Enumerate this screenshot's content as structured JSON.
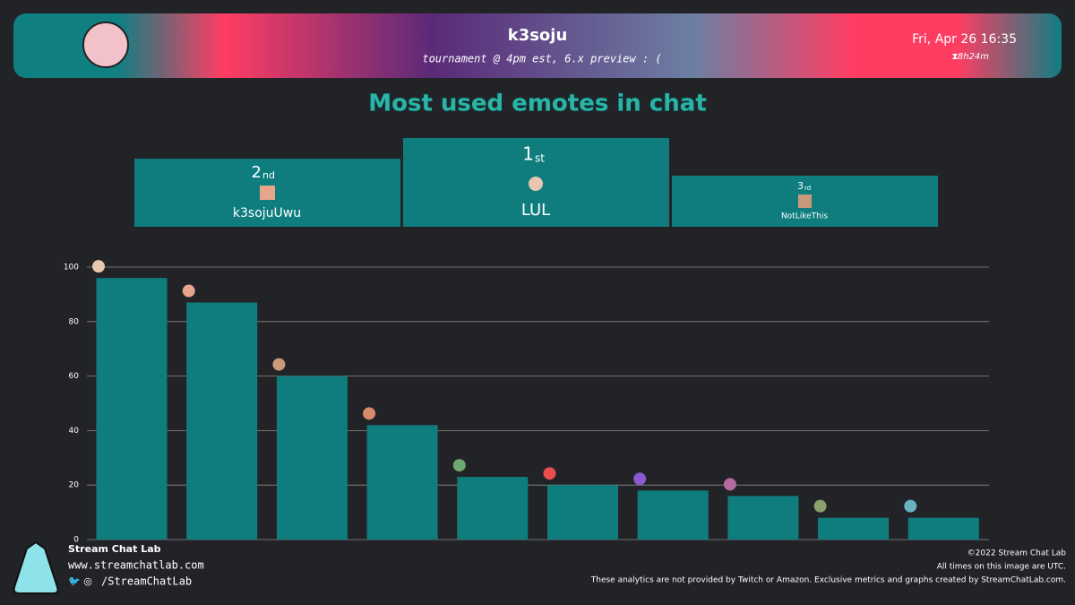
{
  "header": {
    "name": "k3soju",
    "subtitle": "tournament @ 4pm est, 6.x preview : (",
    "date": "Fri, Apr 26 16:35",
    "duration": "8h24m"
  },
  "podium": [
    {
      "rank": "2",
      "suffix": "nd",
      "name": "k3sojuUwu"
    },
    {
      "rank": "1",
      "suffix": "st",
      "name": "LUL"
    },
    {
      "rank": "3",
      "suffix": "rd",
      "name": "NotLikeThis"
    }
  ],
  "chart_data": {
    "type": "bar",
    "title": "Most used emotes in chat",
    "categories": [
      null,
      null,
      null,
      null,
      null,
      null,
      null,
      null,
      null,
      null
    ],
    "values": [
      96,
      87,
      60,
      42,
      23,
      20,
      18,
      16,
      8,
      8
    ],
    "color": "#0f7d7e",
    "ylim": [
      0,
      100
    ],
    "yticks": [
      0,
      20,
      40,
      60,
      80,
      100
    ],
    "grid": true
  },
  "footer": {
    "brand": "Stream Chat Lab",
    "url": "www.streamchatlab.com",
    "social": "/StreamChatLab",
    "copyright": "©2022 Stream Chat Lab",
    "timezone_note": "All times on this image are UTC.",
    "disclaimer": "These analytics are not provided by Twitch or Amazon. Exclusive metrics and graphs created by StreamChatLab.com."
  }
}
